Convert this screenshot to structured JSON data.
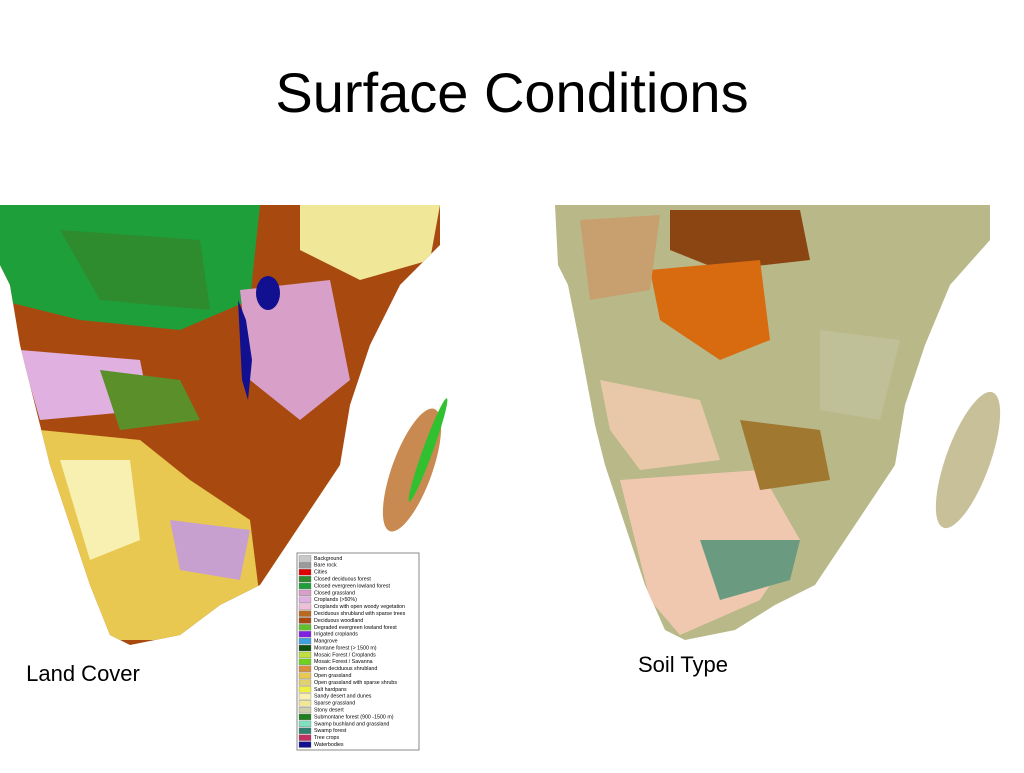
{
  "title": "Surface Conditions",
  "maps": [
    {
      "caption": "Land Cover"
    },
    {
      "caption": "Soil Type"
    }
  ],
  "legend": [
    {
      "label": "Background",
      "color": "#c8c8c8"
    },
    {
      "label": "Bare rock",
      "color": "#9a9a9a"
    },
    {
      "label": "Cities",
      "color": "#e00000"
    },
    {
      "label": "Closed deciduous forest",
      "color": "#2e8b2e"
    },
    {
      "label": "Closed evergreen lowland forest",
      "color": "#1f9f3a"
    },
    {
      "label": "Closed grassland",
      "color": "#d8a0c8"
    },
    {
      "label": "Croplands (>50%)",
      "color": "#e0b0e0"
    },
    {
      "label": "Croplands with open woody vegetation",
      "color": "#f0c0d8"
    },
    {
      "label": "Deciduous shrubland with sparse trees",
      "color": "#b86a20"
    },
    {
      "label": "Deciduous woodland",
      "color": "#a84a10"
    },
    {
      "label": "Degraded evergreen lowland forest",
      "color": "#60c030"
    },
    {
      "label": "Irrigated croplands",
      "color": "#8020e0"
    },
    {
      "label": "Mangrove",
      "color": "#40a0e0"
    },
    {
      "label": "Montane forest (> 1500 m)",
      "color": "#105010"
    },
    {
      "label": "Mosaic Forest / Croplands",
      "color": "#c0e040"
    },
    {
      "label": "Mosaic Forest / Savanna",
      "color": "#70d020"
    },
    {
      "label": "Open deciduous shrubland",
      "color": "#d89040"
    },
    {
      "label": "Open grassland",
      "color": "#e8c850"
    },
    {
      "label": "Open grassland with sparse shrubs",
      "color": "#e0d070"
    },
    {
      "label": "Salt hardpans",
      "color": "#f0f040"
    },
    {
      "label": "Sandy desert and dunes",
      "color": "#f8f0b0"
    },
    {
      "label": "Sparse grassland",
      "color": "#f0e898"
    },
    {
      "label": "Stony desert",
      "color": "#d0d0b0"
    },
    {
      "label": "Submontane forest (900 -1500 m)",
      "color": "#208020"
    },
    {
      "label": "Swamp bushland and grassland",
      "color": "#80e0c0"
    },
    {
      "label": "Swamp forest",
      "color": "#308070"
    },
    {
      "label": "Tree crops",
      "color": "#c03060"
    },
    {
      "label": "Waterbodies",
      "color": "#101090"
    }
  ]
}
